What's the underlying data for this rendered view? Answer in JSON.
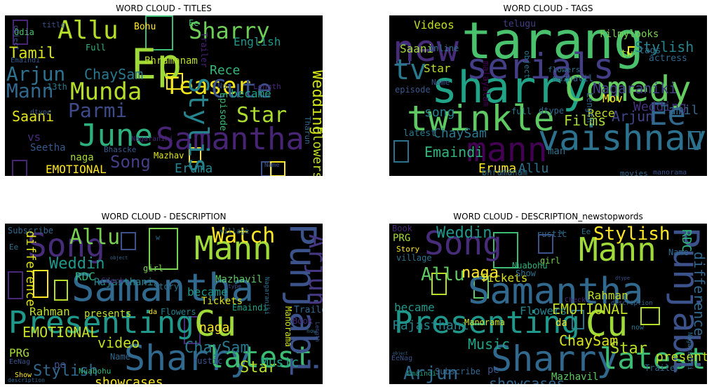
{
  "panels": [
    {
      "title": "WORD CLOUD - TITLES",
      "words": [
        {
          "t": "June",
          "c": "#2cb17e"
        },
        {
          "t": "Samantha",
          "c": "#482475"
        },
        {
          "t": "Ep",
          "c": "#a0da39"
        },
        {
          "t": "Teaser",
          "c": "#f1e51d"
        },
        {
          "t": "Stylish",
          "c": "#25848e"
        },
        {
          "t": "Cute",
          "c": "#3b528b"
        },
        {
          "t": "Munda",
          "c": "#b5de2b"
        },
        {
          "t": "Sharry",
          "c": "#6ece58"
        },
        {
          "t": "Allu",
          "c": "#b5de2b"
        },
        {
          "t": "Arjun",
          "c": "#2c728e"
        },
        {
          "t": "Mann",
          "c": "#31688e"
        },
        {
          "t": "Parmi",
          "c": "#3e4a89"
        },
        {
          "t": "Star",
          "c": "#addc30"
        },
        {
          "t": "Song",
          "c": "#433e85"
        },
        {
          "t": "Tamil",
          "c": "#d8e219"
        },
        {
          "t": "Wedding",
          "c": "#d0e11c"
        },
        {
          "t": "ChaySam",
          "c": "#2a788e"
        },
        {
          "t": "English",
          "c": "#1f988b"
        },
        {
          "t": "Saani",
          "c": "#e5e419"
        },
        {
          "t": "Rece",
          "c": "#35b779"
        },
        {
          "t": "became",
          "c": "#1fa188"
        },
        {
          "t": "Eruma",
          "c": "#26828e"
        },
        {
          "t": "Flowers",
          "c": "#c2df23"
        },
        {
          "t": "EMOTIONAL",
          "c": "#fde725"
        },
        {
          "t": "Seetha",
          "c": "#38598c"
        },
        {
          "t": "naga",
          "c": "#a5db36"
        },
        {
          "t": "vs",
          "c": "#472c7a"
        },
        {
          "t": "13th",
          "c": "#2a788e"
        },
        {
          "t": "Bhramanam",
          "c": "#b8de29"
        },
        {
          "t": "Episode",
          "c": "#3dbc74"
        },
        {
          "t": "Mazhav",
          "c": "#e2e418"
        },
        {
          "t": "Bohu",
          "c": "#fde725"
        },
        {
          "t": "Full",
          "c": "#35b779"
        },
        {
          "t": "Odia",
          "c": "#4ac16d"
        },
        {
          "t": "title",
          "c": "#3b528b"
        },
        {
          "t": "Nua",
          "c": "#3b528b"
        },
        {
          "t": "Length",
          "c": "#482878"
        },
        {
          "t": "Ee",
          "c": "#48c16e"
        },
        {
          "t": "Trailer",
          "c": "#482173"
        },
        {
          "t": "Tharun",
          "c": "#31688e"
        },
        {
          "t": "Bhascke",
          "c": "#38598c"
        },
        {
          "t": "Name",
          "c": "#3b528b"
        },
        {
          "t": "Emaindi",
          "c": "#38598c"
        },
        {
          "t": "dtype",
          "c": "#38598c"
        },
        {
          "t": "Nagaraniki",
          "c": "#482878"
        },
        {
          "t": "object",
          "c": "#3b528b"
        }
      ]
    },
    {
      "title": "WORD CLOUD - TAGS",
      "words": [
        {
          "t": "tarang",
          "c": "#4ac16d"
        },
        {
          "t": "sharry",
          "c": "#20a386"
        },
        {
          "t": "Comedy",
          "c": "#63cb5f"
        },
        {
          "t": "serials",
          "c": "#433e85"
        },
        {
          "t": "twinkle",
          "c": "#5ec962"
        },
        {
          "t": "vaishnav",
          "c": "#2c728e"
        },
        {
          "t": "new",
          "c": "#472c7a"
        },
        {
          "t": "tv",
          "c": "#2a788e"
        },
        {
          "t": "mann",
          "c": "#440154"
        },
        {
          "t": "Ee",
          "c": "#31688e"
        },
        {
          "t": "Nagaraniki",
          "c": "#433e85"
        },
        {
          "t": "Stylish",
          "c": "#25848e"
        },
        {
          "t": "Emaindi",
          "c": "#2fb47c"
        },
        {
          "t": "ChaySam",
          "c": "#2a788e"
        },
        {
          "t": "Arjun",
          "c": "#414487"
        },
        {
          "t": "Wedding",
          "c": "#46327e"
        },
        {
          "t": "Tamil",
          "c": "#31688e"
        },
        {
          "t": "Eruma",
          "c": "#fde725"
        },
        {
          "t": "Allu",
          "c": "#2c728e"
        },
        {
          "t": "Films",
          "c": "#a5db36"
        },
        {
          "t": "Star",
          "c": "#bddf26"
        },
        {
          "t": "song",
          "c": "#25848e"
        },
        {
          "t": "Videos",
          "c": "#c2df23"
        },
        {
          "t": "Saani",
          "c": "#a0da39"
        },
        {
          "t": "Mov",
          "c": "#fde725"
        },
        {
          "t": "Rece",
          "c": "#c2df23"
        },
        {
          "t": "latest",
          "c": "#2a788e"
        },
        {
          "t": "Filmylooks",
          "c": "#7ad151"
        },
        {
          "t": "actress",
          "c": "#31688e"
        },
        {
          "t": "tags",
          "c": "#2c728e"
        },
        {
          "t": "telugu",
          "c": "#433e85"
        },
        {
          "t": "online",
          "c": "#2c728e"
        },
        {
          "t": "malayalam",
          "c": "#440154"
        },
        {
          "t": "bhramanam",
          "c": "#2c728e"
        },
        {
          "t": "movies",
          "c": "#31688e"
        },
        {
          "t": "manorama",
          "c": "#3b528b"
        },
        {
          "t": "dtype",
          "c": "#31688e"
        },
        {
          "t": "full",
          "c": "#2a788e"
        },
        {
          "t": "man",
          "c": "#2c728e"
        },
        {
          "t": "episode",
          "c": "#38598c"
        },
        {
          "t": "mazhavil",
          "c": "#31688e"
        },
        {
          "t": "flowers",
          "c": "#2c728e"
        },
        {
          "t": "Name",
          "c": "#3b528b"
        },
        {
          "t": "object",
          "c": "#2c728e"
        },
        {
          "t": "tw",
          "c": "#a5db36"
        },
        {
          "t": "Length",
          "c": "#31688e"
        }
      ]
    },
    {
      "title": "WORD CLOUD - DESCRIPTION",
      "words": [
        {
          "t": "Samantha",
          "c": "#31688e"
        },
        {
          "t": "Presenting",
          "c": "#1f988b"
        },
        {
          "t": "Cu",
          "c": "#a0da39"
        },
        {
          "t": "Sharry",
          "c": "#31688e"
        },
        {
          "t": "latest",
          "c": "#3dbc74"
        },
        {
          "t": "Punjabi",
          "c": "#3b528b"
        },
        {
          "t": "Mann",
          "c": "#a0da39"
        },
        {
          "t": "Song",
          "c": "#472c7a"
        },
        {
          "t": "Watch",
          "c": "#fde725"
        },
        {
          "t": "Arjun",
          "c": "#453781"
        },
        {
          "t": "Allu",
          "c": "#7ad151"
        },
        {
          "t": "difference",
          "c": "#e2e418"
        },
        {
          "t": "Weddin",
          "c": "#1f988b"
        },
        {
          "t": "RDC",
          "c": "#2fb47c"
        },
        {
          "t": "EMOTIONAL",
          "c": "#c2df23"
        },
        {
          "t": "video",
          "c": "#c2df23"
        },
        {
          "t": "ChaySam",
          "c": "#2a788e"
        },
        {
          "t": "Star",
          "c": "#b5de2b"
        },
        {
          "t": "Stylish",
          "c": "#31688e"
        },
        {
          "t": "naga",
          "c": "#fde725"
        },
        {
          "t": "Music",
          "c": "#20a386"
        },
        {
          "t": "showcases",
          "c": "#fde725"
        },
        {
          "t": "Rahman",
          "c": "#c2df23"
        },
        {
          "t": "presents",
          "c": "#c2df23"
        },
        {
          "t": "Tickets",
          "c": "#d8e219"
        },
        {
          "t": "Rajasthani",
          "c": "#25848e"
        },
        {
          "t": "became",
          "c": "#1f988b"
        },
        {
          "t": "Mazhavil",
          "c": "#5ec962"
        },
        {
          "t": "Trailer",
          "c": "#31688e"
        },
        {
          "t": "PRG",
          "c": "#a5db36"
        },
        {
          "t": "Subscribe",
          "c": "#31688e"
        },
        {
          "t": "Flowers",
          "c": "#26828e"
        },
        {
          "t": "Emaindi",
          "c": "#20a386"
        },
        {
          "t": "Book",
          "c": "#482878"
        },
        {
          "t": "Manorama",
          "c": "#d0e11c"
        },
        {
          "t": "rustic",
          "c": "#3b528b"
        },
        {
          "t": "Name",
          "c": "#31688e"
        },
        {
          "t": "girl",
          "c": "#7ad151"
        },
        {
          "t": "village",
          "c": "#2c728e"
        },
        {
          "t": "Story",
          "c": "#2c728e"
        },
        {
          "t": "Check",
          "c": "#482878"
        },
        {
          "t": "pe",
          "c": "#3b528b"
        },
        {
          "t": "da",
          "c": "#fde725"
        },
        {
          "t": "EeNag",
          "c": "#3b528b"
        },
        {
          "t": "Show",
          "c": "#fde725"
        },
        {
          "t": "Nuabohu",
          "c": "#2fb47c"
        },
        {
          "t": "Ee",
          "c": "#2c728e"
        },
        {
          "t": "w",
          "c": "#2c728e"
        },
        {
          "t": "dtype",
          "c": "#3b528b"
        },
        {
          "t": "now",
          "c": "#2c728e"
        },
        {
          "t": "description",
          "c": "#31688e"
        },
        {
          "t": "Nagaraniki",
          "c": "#2c728e"
        },
        {
          "t": "Length",
          "c": "#3b528b"
        },
        {
          "t": "object",
          "c": "#31688e"
        }
      ]
    },
    {
      "title": "WORD CLOUD - DESCRIPTION_newstopwords",
      "words": [
        {
          "t": "Samantha",
          "c": "#31688e"
        },
        {
          "t": "Presenting",
          "c": "#1f988b"
        },
        {
          "t": "Cu",
          "c": "#a0da39"
        },
        {
          "t": "Sharry",
          "c": "#31688e"
        },
        {
          "t": "latest",
          "c": "#3dbc74"
        },
        {
          "t": "Punjabi",
          "c": "#3b528b"
        },
        {
          "t": "Mann",
          "c": "#a0da39"
        },
        {
          "t": "Song",
          "c": "#472c7a"
        },
        {
          "t": "Stylish",
          "c": "#fde725"
        },
        {
          "t": "Arjun",
          "c": "#31688e"
        },
        {
          "t": "Allu",
          "c": "#5ec962"
        },
        {
          "t": "difference",
          "c": "#31688e"
        },
        {
          "t": "Weddin",
          "c": "#1f988b"
        },
        {
          "t": "RDC",
          "c": "#2fb47c"
        },
        {
          "t": "EMOTIONAL",
          "c": "#c2df23"
        },
        {
          "t": "ChaySam",
          "c": "#d8e219"
        },
        {
          "t": "Star",
          "c": "#b5de2b"
        },
        {
          "t": "naga",
          "c": "#fde725"
        },
        {
          "t": "Music",
          "c": "#20a386"
        },
        {
          "t": "showcases",
          "c": "#31688e"
        },
        {
          "t": "Rahman",
          "c": "#c2df23"
        },
        {
          "t": "presents",
          "c": "#c2df23"
        },
        {
          "t": "Tickets",
          "c": "#d8e219"
        },
        {
          "t": "Rajasthani",
          "c": "#25848e"
        },
        {
          "t": "became",
          "c": "#1f988b"
        },
        {
          "t": "Mazhavil",
          "c": "#5ec962"
        },
        {
          "t": "Trailer",
          "c": "#31688e"
        },
        {
          "t": "PRG",
          "c": "#a5db36"
        },
        {
          "t": "Subscribe",
          "c": "#31688e"
        },
        {
          "t": "Flowers",
          "c": "#26828e"
        },
        {
          "t": "Emaindi",
          "c": "#20a386"
        },
        {
          "t": "Book",
          "c": "#482878"
        },
        {
          "t": "Manorama",
          "c": "#d0e11c"
        },
        {
          "t": "Name",
          "c": "#31688e"
        },
        {
          "t": "girl",
          "c": "#7ad151"
        },
        {
          "t": "village",
          "c": "#2c728e"
        },
        {
          "t": "Story",
          "c": "#fde725"
        },
        {
          "t": "rustic",
          "c": "#31688e"
        },
        {
          "t": "Show",
          "c": "#2c728e"
        },
        {
          "t": "Nuabohu",
          "c": "#2fb47c"
        },
        {
          "t": "pe",
          "c": "#3b528b"
        },
        {
          "t": "da",
          "c": "#fde725"
        },
        {
          "t": "EeNag",
          "c": "#3b528b"
        },
        {
          "t": "Check",
          "c": "#482878"
        },
        {
          "t": "Ee",
          "c": "#2c728e"
        },
        {
          "t": "w",
          "c": "#2c728e"
        },
        {
          "t": "now",
          "c": "#2c728e"
        },
        {
          "t": "dtype",
          "c": "#3b528b"
        },
        {
          "t": "description",
          "c": "#31688e"
        },
        {
          "t": "Nagaraniki",
          "c": "#2c728e"
        },
        {
          "t": "object",
          "c": "#31688e"
        }
      ]
    }
  ]
}
